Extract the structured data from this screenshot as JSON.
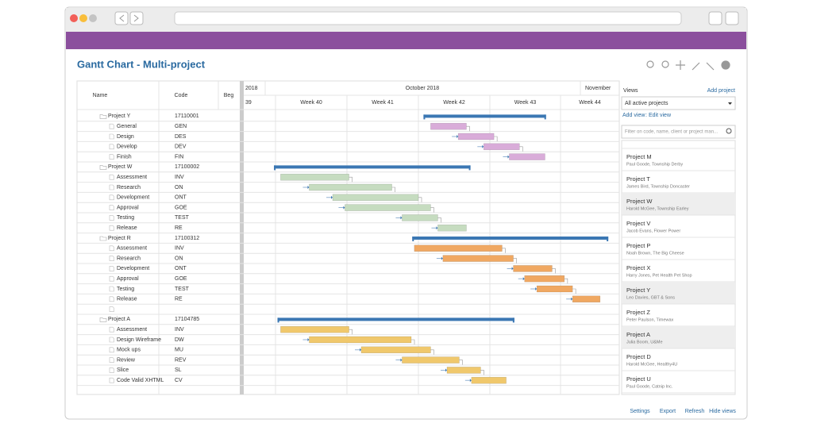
{
  "header": {
    "title": "Gantt Chart - Multi-project"
  },
  "grid": {
    "headers": [
      "Name",
      "Code",
      "Beg"
    ]
  },
  "timeline": {
    "year": "2018",
    "month": "October 2018",
    "next_month": "November",
    "weeks": [
      "39",
      "Week 40",
      "Week 41",
      "Week 42",
      "Week 43",
      "Week 44"
    ]
  },
  "projects": [
    {
      "name": "Project Y",
      "code": "17110001",
      "start": 15.5,
      "end": 27.5,
      "color": "#d9acd9",
      "tasks": [
        {
          "name": "General",
          "code": "GEN",
          "start": 16.2,
          "end": 19.7
        },
        {
          "name": "Design",
          "code": "DES",
          "start": 18.9,
          "end": 22.4
        },
        {
          "name": "Develop",
          "code": "DEV",
          "start": 21.4,
          "end": 24.9
        },
        {
          "name": "Finish",
          "code": "FIN",
          "start": 23.9,
          "end": 27.4
        }
      ]
    },
    {
      "name": "Project W",
      "code": "17100002",
      "start": 0.85,
      "end": 20.1,
      "color": "#c6dcc0",
      "tasks": [
        {
          "name": "Assessment",
          "code": "INV",
          "start": 1.5,
          "end": 8.2
        },
        {
          "name": "Research",
          "code": "ON",
          "start": 4.3,
          "end": 12.4
        },
        {
          "name": "Development",
          "code": "ONT",
          "start": 6.6,
          "end": 15
        },
        {
          "name": "Approval",
          "code": "GOE",
          "start": 7.8,
          "end": 16.2
        },
        {
          "name": "Testing",
          "code": "TEST",
          "start": 13.4,
          "end": 16.9
        },
        {
          "name": "Release",
          "code": "RE",
          "start": 16.9,
          "end": 19.7
        }
      ]
    },
    {
      "name": "Project R",
      "code": "17100312",
      "start": 14.4,
      "end": 33.6,
      "color": "#f0a862",
      "tasks": [
        {
          "name": "Assessment",
          "code": "INV",
          "start": 14.6,
          "end": 23.2
        },
        {
          "name": "Research",
          "code": "ON",
          "start": 17.4,
          "end": 24.3
        },
        {
          "name": "Development",
          "code": "ONT",
          "start": 24.3,
          "end": 28.1
        },
        {
          "name": "Approval",
          "code": "GOE",
          "start": 25.4,
          "end": 29.3
        },
        {
          "name": "Testing",
          "code": "TEST",
          "start": 26.6,
          "end": 30.1
        },
        {
          "name": "Release",
          "code": "RE",
          "start": 30.1,
          "end": 32.8
        }
      ]
    },
    {
      "name": "Project A",
      "code": "17104785",
      "start": 1.2,
      "end": 24.4,
      "color": "#f0c86c",
      "tasks": [
        {
          "name": "Assessment",
          "code": "INV",
          "start": 1.5,
          "end": 8.2
        },
        {
          "name": "Design Wireframe",
          "code": "DW",
          "start": 4.3,
          "end": 14.3
        },
        {
          "name": "Mock ups",
          "code": "MU",
          "start": 9.4,
          "end": 16.2
        },
        {
          "name": "Review",
          "code": "REV",
          "start": 13.4,
          "end": 19
        },
        {
          "name": "Slice",
          "code": "SL",
          "start": 17.8,
          "end": 21.1
        },
        {
          "name": "Code Valid XHTML",
          "code": "CV",
          "start": 20.2,
          "end": 23.6
        }
      ]
    }
  ],
  "views": {
    "label": "Views",
    "add_project": "Add project",
    "selector": "All active projects",
    "add_view": "Add view",
    "link_separator": ":",
    "edit_view": "Edit view",
    "search_placeholder": "Filter on code, name, client or project man...",
    "items": [
      {
        "name": "Project M",
        "detail": "Paul Goode, Township Derby",
        "highlighted": false
      },
      {
        "name": "Project T",
        "detail": "James Bird, Township Doncaster",
        "highlighted": false
      },
      {
        "name": "Project W",
        "detail": "Harold McGee, Township Earley",
        "highlighted": true
      },
      {
        "name": "Project V",
        "detail": "Jacob Evans, Flower Power",
        "highlighted": false
      },
      {
        "name": "Project P",
        "detail": "Noah Brown, The Big Cheese",
        "highlighted": false
      },
      {
        "name": "Project X",
        "detail": "Harry Jones, Pet Health Pet Shop",
        "highlighted": false
      },
      {
        "name": "Project Y",
        "detail": "Leo Davies, GBT & Sons",
        "highlighted": true
      },
      {
        "name": "Project Z",
        "detail": "Peter Paulson, Timewax",
        "highlighted": false
      },
      {
        "name": "Project A",
        "detail": "Julia Boom, U&Me",
        "highlighted": true
      },
      {
        "name": "Project D",
        "detail": "Harold McGee, Healthy4U",
        "highlighted": false
      },
      {
        "name": "Project U",
        "detail": "Paul Goode, Catnip Inc.",
        "highlighted": false
      }
    ]
  },
  "footer": {
    "links": [
      "Settings",
      "Export",
      "Refresh",
      "Hide views"
    ]
  }
}
